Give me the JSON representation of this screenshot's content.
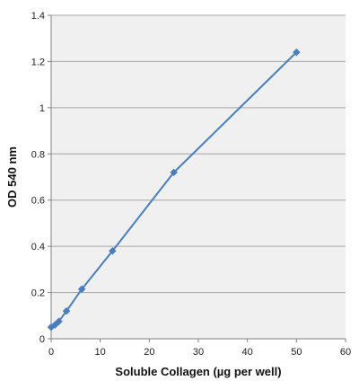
{
  "chart_data": {
    "type": "line",
    "title": "",
    "xlabel": "Soluble Collagen (µg per well)",
    "ylabel": "OD 540 nm",
    "xlim": [
      0,
      60
    ],
    "ylim": [
      0,
      1.4
    ],
    "x_ticks": [
      "0",
      "10",
      "20",
      "30",
      "40",
      "50",
      "60"
    ],
    "y_ticks": [
      "0",
      "0.2",
      "0.4",
      "0.6",
      "0.8",
      "1",
      "1.2",
      "1.4"
    ],
    "grid": true,
    "legend": "none",
    "series": [
      {
        "color": "#4a7ebb",
        "marker": "diamond",
        "points": [
          {
            "x": 0,
            "y": 0.05
          },
          {
            "x": 0.78,
            "y": 0.06
          },
          {
            "x": 1.56,
            "y": 0.075
          },
          {
            "x": 3.125,
            "y": 0.12
          },
          {
            "x": 6.25,
            "y": 0.215
          },
          {
            "x": 12.5,
            "y": 0.38
          },
          {
            "x": 25,
            "y": 0.72
          },
          {
            "x": 50,
            "y": 1.24
          }
        ]
      }
    ],
    "colors": {
      "plot_background": "#f0f0f0",
      "gridline": "#a6a6a6",
      "axis": "#808080"
    }
  }
}
